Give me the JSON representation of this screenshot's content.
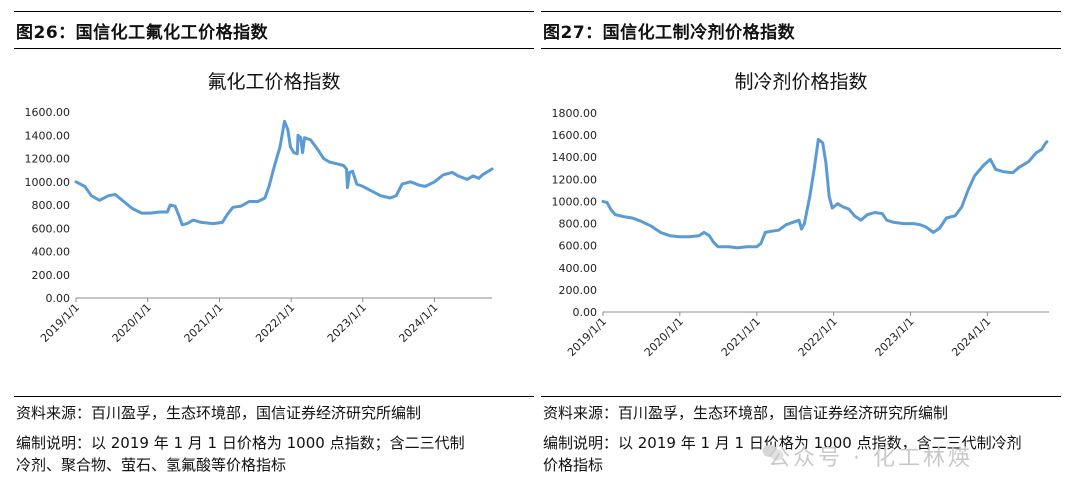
{
  "panels": [
    {
      "figure_title": "图26：国信化工氟化工价格指数",
      "source": "资料来源：百川盈孚，生态环境部，国信证券经济研究所编制",
      "note_line1": "编制说明：以 2019 年 1 月 1 日价格为 1000 点指数；含二三代制",
      "note_line2": "冷剂、聚合物、萤石、氢氟酸等价格指标"
    },
    {
      "figure_title": "图27：国信化工制冷剂价格指数",
      "source": "资料来源：百川盈孚，生态环境部，国信证券经济研究所编制",
      "note_line1": "编制说明：以 2019 年 1 月 1 日价格为 1000 点指数，含二三代制冷剂",
      "note_line2": "价格指标"
    }
  ],
  "watermark": "公众号 · 化工林煐",
  "colors": {
    "line": "#5b9bd5",
    "rule": "#000000"
  },
  "chart_data": [
    {
      "type": "line",
      "title": "氟化工价格指数",
      "ylim": [
        0,
        1600
      ],
      "yticks": [
        "0.00",
        "200.00",
        "400.00",
        "600.00",
        "800.00",
        "1000.00",
        "1200.00",
        "1400.00",
        "1600.00"
      ],
      "xticks": [
        "2019/1/1",
        "2020/1/1",
        "2021/1/1",
        "2022/1/1",
        "2023/1/1",
        "2024/1/1"
      ],
      "grid": false,
      "series": [
        {
          "points": [
            [
              "2019-01-01",
              1000
            ],
            [
              "2019-02-15",
              960
            ],
            [
              "2019-03-20",
              880
            ],
            [
              "2019-05-01",
              840
            ],
            [
              "2019-06-15",
              880
            ],
            [
              "2019-07-20",
              890
            ],
            [
              "2019-09-01",
              830
            ],
            [
              "2019-10-15",
              770
            ],
            [
              "2019-12-01",
              730
            ],
            [
              "2020-01-15",
              730
            ],
            [
              "2020-03-01",
              740
            ],
            [
              "2020-04-10",
              740
            ],
            [
              "2020-04-25",
              800
            ],
            [
              "2020-05-20",
              790
            ],
            [
              "2020-06-10",
              700
            ],
            [
              "2020-06-25",
              630
            ],
            [
              "2020-07-20",
              640
            ],
            [
              "2020-08-20",
              670
            ],
            [
              "2020-10-01",
              650
            ],
            [
              "2020-12-01",
              640
            ],
            [
              "2021-01-15",
              650
            ],
            [
              "2021-02-10",
              720
            ],
            [
              "2021-03-10",
              780
            ],
            [
              "2021-04-20",
              790
            ],
            [
              "2021-06-01",
              830
            ],
            [
              "2021-07-15",
              830
            ],
            [
              "2021-08-20",
              860
            ],
            [
              "2021-09-10",
              960
            ],
            [
              "2021-10-10",
              1150
            ],
            [
              "2021-11-05",
              1300
            ],
            [
              "2021-11-28",
              1520
            ],
            [
              "2021-12-15",
              1450
            ],
            [
              "2021-12-28",
              1300
            ],
            [
              "2022-01-15",
              1250
            ],
            [
              "2022-02-01",
              1240
            ],
            [
              "2022-02-05",
              1400
            ],
            [
              "2022-02-18",
              1380
            ],
            [
              "2022-02-28",
              1250
            ],
            [
              "2022-03-10",
              1380
            ],
            [
              "2022-04-10",
              1360
            ],
            [
              "2022-05-15",
              1280
            ],
            [
              "2022-06-15",
              1200
            ],
            [
              "2022-07-15",
              1170
            ],
            [
              "2022-09-01",
              1150
            ],
            [
              "2022-09-25",
              1140
            ],
            [
              "2022-10-10",
              1110
            ],
            [
              "2022-10-15",
              950
            ],
            [
              "2022-10-25",
              1080
            ],
            [
              "2022-11-10",
              1090
            ],
            [
              "2022-12-01",
              980
            ],
            [
              "2023-01-01",
              960
            ],
            [
              "2023-02-15",
              920
            ],
            [
              "2023-04-01",
              880
            ],
            [
              "2023-05-20",
              860
            ],
            [
              "2023-06-20",
              880
            ],
            [
              "2023-07-20",
              980
            ],
            [
              "2023-09-01",
              1000
            ],
            [
              "2023-10-15",
              970
            ],
            [
              "2023-11-15",
              960
            ],
            [
              "2024-01-01",
              1000
            ],
            [
              "2024-02-15",
              1060
            ],
            [
              "2024-04-01",
              1080
            ],
            [
              "2024-05-01",
              1050
            ],
            [
              "2024-06-15",
              1020
            ],
            [
              "2024-07-15",
              1050
            ],
            [
              "2024-08-15",
              1030
            ],
            [
              "2024-09-01",
              1060
            ],
            [
              "2024-10-01",
              1090
            ],
            [
              "2024-10-20",
              1110
            ]
          ]
        }
      ]
    },
    {
      "type": "line",
      "title": "制冷剂价格指数",
      "ylim": [
        0,
        1800
      ],
      "yticks": [
        "0.00",
        "200.00",
        "400.00",
        "600.00",
        "800.00",
        "1000.00",
        "1200.00",
        "1400.00",
        "1600.00",
        "1800.00"
      ],
      "xticks": [
        "2019/1/1",
        "2020/1/1",
        "2021/1/1",
        "2022/1/1",
        "2023/1/1",
        "2024/1/1"
      ],
      "grid": false,
      "series": [
        {
          "points": [
            [
              "2019-01-01",
              1000
            ],
            [
              "2019-01-20",
              990
            ],
            [
              "2019-02-10",
              920
            ],
            [
              "2019-03-01",
              880
            ],
            [
              "2019-04-15",
              860
            ],
            [
              "2019-05-20",
              850
            ],
            [
              "2019-07-01",
              820
            ],
            [
              "2019-08-15",
              780
            ],
            [
              "2019-10-01",
              720
            ],
            [
              "2019-11-15",
              690
            ],
            [
              "2019-12-31",
              680
            ],
            [
              "2020-02-15",
              680
            ],
            [
              "2020-04-01",
              690
            ],
            [
              "2020-04-25",
              720
            ],
            [
              "2020-05-20",
              690
            ],
            [
              "2020-06-10",
              630
            ],
            [
              "2020-07-01",
              590
            ],
            [
              "2020-08-20",
              590
            ],
            [
              "2020-10-01",
              580
            ],
            [
              "2020-11-15",
              590
            ],
            [
              "2020-12-31",
              590
            ],
            [
              "2021-01-20",
              620
            ],
            [
              "2021-02-10",
              720
            ],
            [
              "2021-03-10",
              730
            ],
            [
              "2021-04-15",
              740
            ],
            [
              "2021-05-20",
              790
            ],
            [
              "2021-06-20",
              810
            ],
            [
              "2021-07-20",
              830
            ],
            [
              "2021-08-01",
              750
            ],
            [
              "2021-08-15",
              800
            ],
            [
              "2021-09-10",
              1050
            ],
            [
              "2021-10-01",
              1300
            ],
            [
              "2021-10-20",
              1560
            ],
            [
              "2021-11-10",
              1530
            ],
            [
              "2021-11-25",
              1350
            ],
            [
              "2021-12-10",
              1050
            ],
            [
              "2021-12-25",
              940
            ],
            [
              "2022-01-20",
              980
            ],
            [
              "2022-02-15",
              950
            ],
            [
              "2022-03-15",
              930
            ],
            [
              "2022-04-10",
              870
            ],
            [
              "2022-05-10",
              830
            ],
            [
              "2022-06-10",
              880
            ],
            [
              "2022-07-15",
              900
            ],
            [
              "2022-08-20",
              890
            ],
            [
              "2022-09-10",
              830
            ],
            [
              "2022-10-15",
              810
            ],
            [
              "2022-11-30",
              800
            ],
            [
              "2023-01-15",
              800
            ],
            [
              "2023-02-15",
              790
            ],
            [
              "2023-03-15",
              770
            ],
            [
              "2023-04-20",
              720
            ],
            [
              "2023-05-20",
              760
            ],
            [
              "2023-06-20",
              850
            ],
            [
              "2023-08-01",
              870
            ],
            [
              "2023-09-01",
              950
            ],
            [
              "2023-10-01",
              1100
            ],
            [
              "2023-11-01",
              1230
            ],
            [
              "2023-12-15",
              1330
            ],
            [
              "2024-01-15",
              1380
            ],
            [
              "2024-02-10",
              1290
            ],
            [
              "2024-03-15",
              1270
            ],
            [
              "2024-05-01",
              1260
            ],
            [
              "2024-06-01",
              1310
            ],
            [
              "2024-07-15",
              1360
            ],
            [
              "2024-08-20",
              1440
            ],
            [
              "2024-09-15",
              1470
            ],
            [
              "2024-10-01",
              1520
            ],
            [
              "2024-10-10",
              1540
            ]
          ]
        }
      ]
    }
  ]
}
